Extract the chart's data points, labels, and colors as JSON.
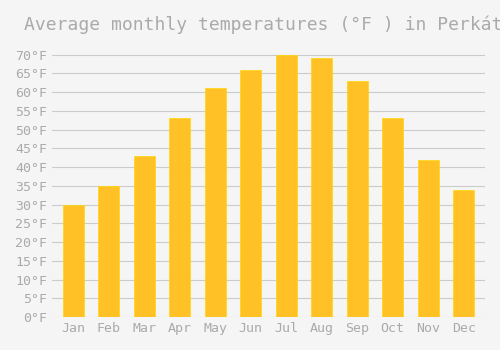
{
  "title": "Average monthly temperatures (°F ) in Perkáta",
  "months": [
    "Jan",
    "Feb",
    "Mar",
    "Apr",
    "May",
    "Jun",
    "Jul",
    "Aug",
    "Sep",
    "Oct",
    "Nov",
    "Dec"
  ],
  "values": [
    30,
    35,
    43,
    53,
    61,
    66,
    70,
    69,
    63,
    53,
    42,
    34
  ],
  "bar_color": "#FFC125",
  "bar_edge_color": "#FFD700",
  "background_color": "#F5F5F5",
  "grid_color": "#CCCCCC",
  "yticks": [
    0,
    5,
    10,
    15,
    20,
    25,
    30,
    35,
    40,
    45,
    50,
    55,
    60,
    65,
    70
  ],
  "ylim": [
    0,
    73
  ],
  "title_fontsize": 13,
  "tick_fontsize": 9.5,
  "font_color": "#AAAAAA"
}
